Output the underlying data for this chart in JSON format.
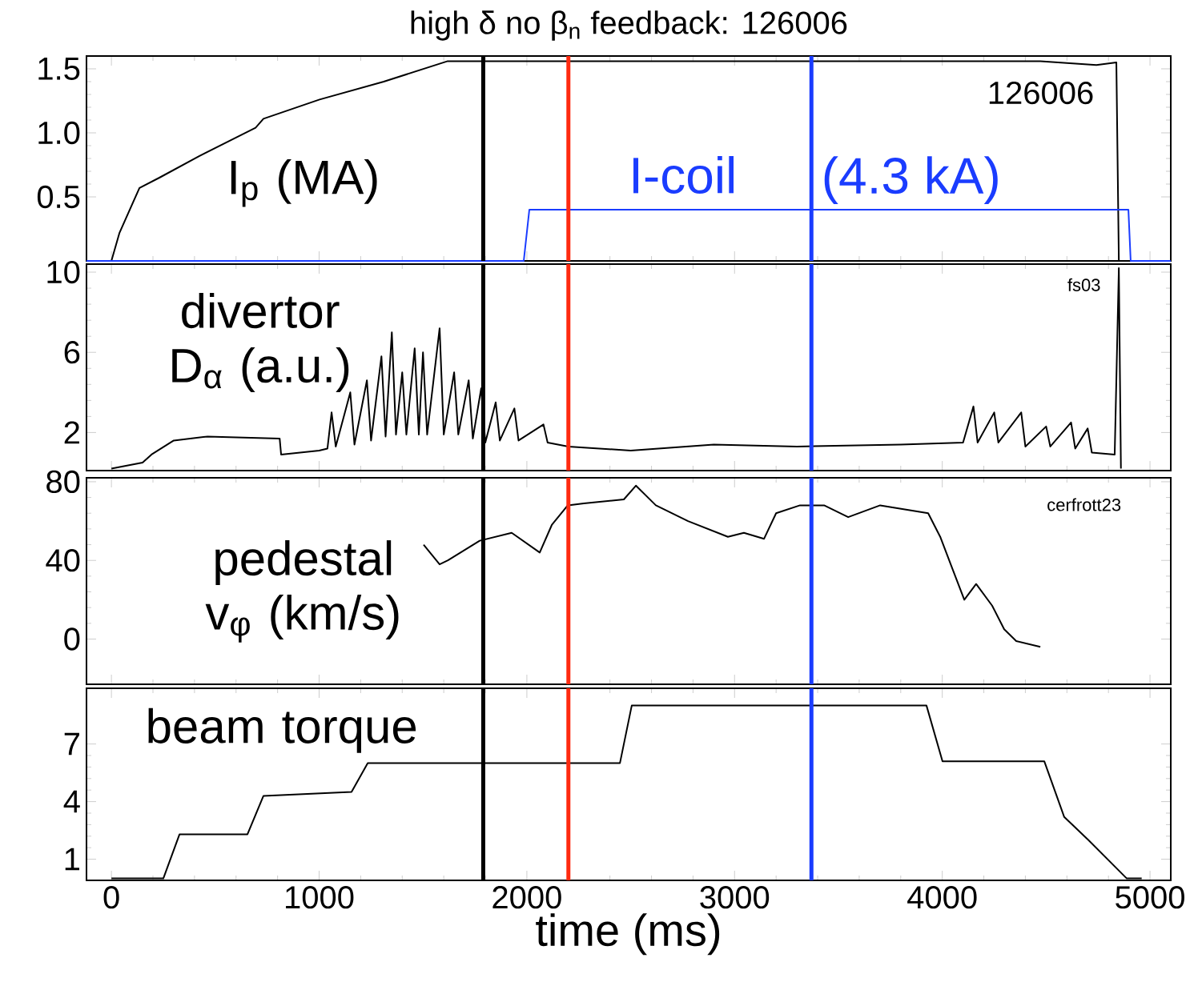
{
  "chart_data": [
    {
      "type": "line",
      "title": "high δ no β$_{n}$ feedback: 126006",
      "ylabel": "I$_{p}$ (MA)",
      "xlim": [
        -120,
        5100
      ],
      "xticks": [
        0,
        1000,
        2000,
        3000,
        4000,
        5000
      ],
      "ylim": [
        0,
        1.6
      ],
      "yticks": [
        {
          "value": 0.5,
          "label": "0.5"
        },
        {
          "value": 1,
          "label": "1.0"
        },
        {
          "value": 1.5,
          "label": "1.5"
        }
      ],
      "tick_labels": "y",
      "series": [
        {
          "color": "#000000",
          "x": [
            0,
            39,
            135,
            231,
            424,
            694,
            732,
            1002,
            1311,
            1619,
            1773,
            3315,
            4472,
            4742,
            4838,
            4850,
            5100
          ],
          "values": [
            0,
            0.22,
            0.57,
            0.65,
            0.82,
            1.04,
            1.11,
            1.26,
            1.4,
            1.56,
            1.56,
            1.56,
            1.56,
            1.53,
            1.55,
            0,
            0
          ]
        },
        {
          "name": "I-coil",
          "color": "#1a3cff",
          "x": [
            -120,
            1985,
            2012,
            4896,
            4907,
            5100
          ],
          "values": [
            0,
            0,
            0.4,
            0.4,
            0,
            0
          ]
        }
      ],
      "annotations": [
        "126006",
        {
          "text": "(4.3 kA)",
          "x": 3850,
          "y": 0.4
        }
      ],
      "ref_lines": [
        {
          "axis": "x",
          "value": 1790,
          "color": "#000000"
        },
        {
          "axis": "x",
          "value": 2200,
          "color": "#ff2a10"
        },
        {
          "axis": "x",
          "value": 3370,
          "color": "#1a3cff"
        }
      ]
    },
    {
      "type": "line",
      "ylabel": "divertor D$_{α}$ (a.u.)",
      "xlim": [
        -120,
        5100
      ],
      "xticks": [
        0,
        1000,
        2000,
        3000,
        4000,
        5000
      ],
      "ylim": [
        0.1,
        10.4
      ],
      "yticks": [
        2,
        6,
        10
      ],
      "tick_labels": "y",
      "series": [
        {
          "color": "#000000",
          "x": [
            0,
            150,
            193,
            300,
            463,
            810,
            817,
            1000,
            1040,
            1060,
            1080,
            1150,
            1170,
            1230,
            1250,
            1300,
            1320,
            1350,
            1370,
            1400,
            1420,
            1460,
            1480,
            1500,
            1520,
            1580,
            1600,
            1650,
            1670,
            1720,
            1740,
            1780,
            1800,
            1850,
            1870,
            1940,
            1960,
            2080,
            2100,
            2200,
            2500,
            2900,
            3300,
            3800,
            4100,
            4150,
            4170,
            4250,
            4270,
            4380,
            4400,
            4500,
            4520,
            4620,
            4640,
            4700,
            4720,
            4830,
            4850,
            4860
          ],
          "values": [
            0.2,
            0.5,
            0.9,
            1.6,
            1.8,
            1.7,
            0.9,
            1.1,
            1.2,
            3.0,
            1.3,
            4.0,
            1.4,
            4.6,
            1.6,
            5.8,
            1.8,
            7.0,
            1.9,
            5.0,
            1.9,
            6.2,
            1.9,
            6.0,
            1.9,
            7.2,
            1.9,
            5.0,
            1.9,
            4.6,
            1.7,
            4.2,
            1.5,
            3.5,
            1.6,
            3.2,
            1.6,
            2.4,
            1.5,
            1.3,
            1.1,
            1.4,
            1.3,
            1.4,
            1.5,
            3.3,
            1.5,
            3.0,
            1.5,
            3.0,
            1.3,
            2.3,
            1.3,
            2.5,
            1.2,
            2.2,
            1.0,
            0.9,
            10.2,
            0.2
          ]
        }
      ],
      "annotations": [
        "fs03"
      ],
      "ref_lines": [
        {
          "axis": "x",
          "value": 1790,
          "color": "#000000"
        },
        {
          "axis": "x",
          "value": 2200,
          "color": "#ff2a10"
        },
        {
          "axis": "x",
          "value": 3370,
          "color": "#1a3cff"
        }
      ]
    },
    {
      "type": "line",
      "ylabel": "pedestal v$_{φ}$ (km/s)",
      "xlim": [
        -120,
        5100
      ],
      "xticks": [
        0,
        1000,
        2000,
        3000,
        4000,
        5000
      ],
      "ylim": [
        -23,
        82
      ],
      "yticks": [
        0,
        40,
        80
      ],
      "tick_labels": "y",
      "series": [
        {
          "color": "#000000",
          "x": [
            1503,
            1580,
            1620,
            1773,
            1927,
            2062,
            2120,
            2197,
            2274,
            2467,
            2525,
            2621,
            2776,
            2968,
            3045,
            3142,
            3200,
            3315,
            3431,
            3547,
            3701,
            3932,
            3990,
            4048,
            4106,
            4163,
            4240,
            4298,
            4356,
            4472
          ],
          "values": [
            48,
            38,
            40,
            50,
            54,
            44,
            58,
            68,
            69,
            71,
            78,
            68,
            60,
            52,
            54,
            51,
            64,
            68,
            68,
            62,
            68,
            64,
            52,
            36,
            20,
            28,
            17,
            5,
            -1,
            -4
          ]
        }
      ],
      "annotations": [
        "cerfrott23"
      ],
      "ref_lines": [
        {
          "axis": "x",
          "value": 1790,
          "color": "#000000"
        },
        {
          "axis": "x",
          "value": 2200,
          "color": "#ff2a10"
        },
        {
          "axis": "x",
          "value": 3370,
          "color": "#1a3cff"
        }
      ]
    },
    {
      "type": "line",
      "ylabel": "beam torque",
      "xlabel": "time (ms)",
      "xlim": [
        -120,
        5100
      ],
      "xticks": [
        0,
        1000,
        2000,
        3000,
        4000,
        5000
      ],
      "ylim": [
        -0.1,
        9.9
      ],
      "yticks": [
        1,
        4,
        7
      ],
      "series": [
        {
          "color": "#000000",
          "x": [
            0,
            250,
            328,
            655,
            732,
            1156,
            1234,
            2448,
            2505,
            3924,
            4001,
            4491,
            4587,
            4703,
            4888,
            4960
          ],
          "values": [
            0,
            0,
            2.3,
            2.3,
            4.3,
            4.5,
            6.0,
            6.0,
            9.0,
            9.0,
            6.1,
            6.1,
            3.2,
            2.0,
            0,
            0
          ]
        }
      ],
      "ref_lines": [
        {
          "axis": "x",
          "value": 1790,
          "color": "#000000"
        },
        {
          "axis": "x",
          "value": 2200,
          "color": "#ff2a10"
        },
        {
          "axis": "x",
          "value": 3370,
          "color": "#1a3cff"
        }
      ]
    }
  ]
}
